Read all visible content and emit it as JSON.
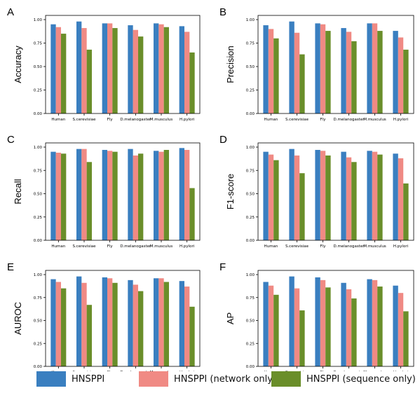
{
  "colors": {
    "HNSPPI": "#3a7fc0",
    "HNSPPI (network only)": "#f08a84",
    "HNSPPI (sequence only)": "#6a8e2a"
  },
  "legend": [
    {
      "name": "HNSPPI",
      "color": "#3a7fc0"
    },
    {
      "name": "HNSPPI (network only)",
      "color": "#f08a84"
    },
    {
      "name": "HNSPPI (sequence only)",
      "color": "#6a8e2a"
    }
  ],
  "chart_data": [
    {
      "panel": "A",
      "type": "bar",
      "ylabel": "Accuracy",
      "ylim": [
        0,
        1.0
      ],
      "yticks": [
        "0.00",
        "0.25",
        "0.50",
        "0.75",
        "1.00"
      ],
      "categories": [
        "Human",
        "S.cerevisiae",
        "Fly",
        "D.melanogaster",
        "M.musculus",
        "H.pylori"
      ],
      "series": [
        {
          "name": "HNSPPI",
          "values": [
            0.95,
            0.98,
            0.96,
            0.94,
            0.96,
            0.93
          ]
        },
        {
          "name": "HNSPPI (network only)",
          "values": [
            0.92,
            0.91,
            0.96,
            0.89,
            0.95,
            0.87
          ]
        },
        {
          "name": "HNSPPI (sequence only)",
          "values": [
            0.85,
            0.68,
            0.91,
            0.82,
            0.92,
            0.65
          ]
        }
      ]
    },
    {
      "panel": "B",
      "type": "bar",
      "ylabel": "Precision",
      "ylim": [
        0,
        1.0
      ],
      "yticks": [
        "0.00",
        "0.25",
        "0.50",
        "0.75",
        "1.00"
      ],
      "categories": [
        "Human",
        "S.cerevisiae",
        "Fly",
        "D.melanogaster",
        "M.musculus",
        "H.pylori"
      ],
      "series": [
        {
          "name": "HNSPPI",
          "values": [
            0.94,
            0.98,
            0.96,
            0.91,
            0.96,
            0.88
          ]
        },
        {
          "name": "HNSPPI (network only)",
          "values": [
            0.9,
            0.86,
            0.95,
            0.87,
            0.96,
            0.81
          ]
        },
        {
          "name": "HNSPPI (sequence only)",
          "values": [
            0.8,
            0.63,
            0.88,
            0.77,
            0.88,
            0.68
          ]
        }
      ]
    },
    {
      "panel": "C",
      "type": "bar",
      "ylabel": "Recall",
      "ylim": [
        0,
        1.0
      ],
      "yticks": [
        "0.00",
        "0.25",
        "0.50",
        "0.75",
        "1.00"
      ],
      "categories": [
        "Human",
        "S.cerevisiae",
        "Fly",
        "D.melanogaster",
        "M.musculus",
        "H.pylori"
      ],
      "series": [
        {
          "name": "HNSPPI",
          "values": [
            0.95,
            0.98,
            0.97,
            0.98,
            0.96,
            0.99
          ]
        },
        {
          "name": "HNSPPI (network only)",
          "values": [
            0.94,
            0.98,
            0.96,
            0.91,
            0.95,
            0.97
          ]
        },
        {
          "name": "HNSPPI (sequence only)",
          "values": [
            0.93,
            0.84,
            0.95,
            0.93,
            0.97,
            0.56
          ]
        }
      ]
    },
    {
      "panel": "D",
      "type": "bar",
      "ylabel": "F1-score",
      "ylim": [
        0,
        1.0
      ],
      "yticks": [
        "0.00",
        "0.25",
        "0.50",
        "0.75",
        "1.00"
      ],
      "categories": [
        "Human",
        "S.cerevisiae",
        "Fly",
        "D.melanogaster",
        "M.musculus",
        "H.pylori"
      ],
      "series": [
        {
          "name": "HNSPPI",
          "values": [
            0.95,
            0.98,
            0.97,
            0.95,
            0.96,
            0.93
          ]
        },
        {
          "name": "HNSPPI (network only)",
          "values": [
            0.92,
            0.91,
            0.96,
            0.89,
            0.95,
            0.88
          ]
        },
        {
          "name": "HNSPPI (sequence only)",
          "values": [
            0.86,
            0.72,
            0.91,
            0.84,
            0.92,
            0.61
          ]
        }
      ]
    },
    {
      "panel": "E",
      "type": "bar",
      "ylabel": "AUROC",
      "ylim": [
        0,
        1.0
      ],
      "yticks": [
        "0.00",
        "0.25",
        "0.50",
        "0.75",
        "1.00"
      ],
      "categories": [
        "Human",
        "S.cerevisiae",
        "Fly",
        "D.melanogaster",
        "M.musculus",
        "H.pylori"
      ],
      "series": [
        {
          "name": "HNSPPI",
          "values": [
            0.95,
            0.98,
            0.97,
            0.94,
            0.96,
            0.93
          ]
        },
        {
          "name": "HNSPPI (network only)",
          "values": [
            0.92,
            0.91,
            0.96,
            0.89,
            0.96,
            0.87
          ]
        },
        {
          "name": "HNSPPI (sequence only)",
          "values": [
            0.85,
            0.67,
            0.91,
            0.82,
            0.92,
            0.65
          ]
        }
      ]
    },
    {
      "panel": "F",
      "type": "bar",
      "ylabel": "AP",
      "ylim": [
        0,
        1.0
      ],
      "yticks": [
        "0.00",
        "0.25",
        "0.50",
        "0.75",
        "1.00"
      ],
      "categories": [
        "Human",
        "S.cerevisiae",
        "Fly",
        "D.melanogaster",
        "M.musculus",
        "H.pylori"
      ],
      "series": [
        {
          "name": "HNSPPI",
          "values": [
            0.92,
            0.98,
            0.97,
            0.91,
            0.95,
            0.88
          ]
        },
        {
          "name": "HNSPPI (network only)",
          "values": [
            0.88,
            0.85,
            0.94,
            0.84,
            0.94,
            0.8
          ]
        },
        {
          "name": "HNSPPI (sequence only)",
          "values": [
            0.78,
            0.61,
            0.86,
            0.74,
            0.87,
            0.6
          ]
        }
      ]
    }
  ]
}
